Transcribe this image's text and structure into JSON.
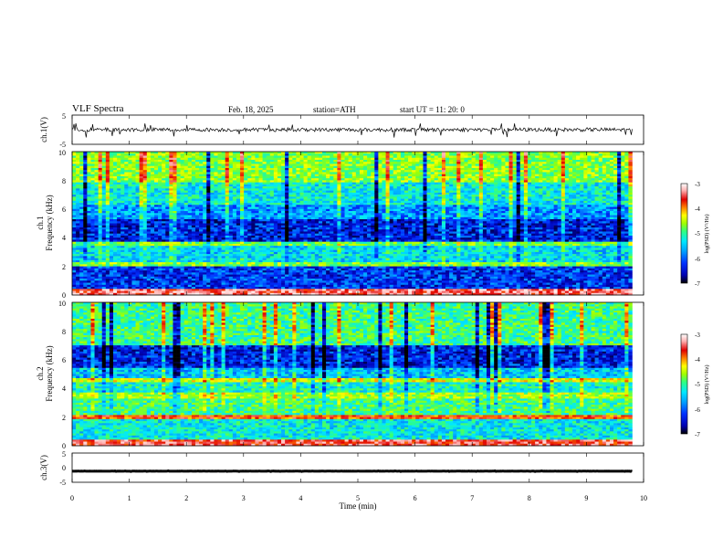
{
  "header": {
    "title": "VLF  Spectra",
    "date": "Feb. 18, 2025",
    "station": "station=ATH",
    "start_ut": "start  UT  =   11: 20: 0"
  },
  "colors": {
    "background": "#ffffff",
    "axis": "#000000",
    "colormap": [
      "#000000",
      "#0000b0",
      "#0030ff",
      "#00a0ff",
      "#00e8ff",
      "#30ff80",
      "#a0ff00",
      "#ffff00",
      "#ff8000",
      "#e00000",
      "#ffb0b0",
      "#ffffff"
    ]
  },
  "chart_data": [
    {
      "type": "line",
      "panel": "ch1-waveform",
      "ylabel": "ch.1(V)",
      "ylim": [
        -5,
        5
      ],
      "yticks": [
        "5",
        "-5"
      ],
      "xlim": [
        0,
        10
      ],
      "series": [
        {
          "values_summary": "noisy waveform around 0 V with spikes",
          "baseline": 0
        }
      ]
    },
    {
      "type": "heatmap",
      "panel": "ch1-spectrogram",
      "ylabel": "Frequency  (kHz)",
      "channel_label": "ch.1",
      "ylim": [
        0,
        10
      ],
      "yticks": [
        "0",
        "2",
        "4",
        "6",
        "8",
        "10"
      ],
      "xlim": [
        0,
        9.8
      ],
      "colorbar": {
        "label": "log(PSD) (V²/Hz)",
        "range": [
          -7,
          -3
        ],
        "ticks": [
          "-3",
          "-4",
          "-5",
          "-6",
          "-7"
        ]
      },
      "bands": [
        {
          "from": 0,
          "to": 0.5,
          "value": -3.5
        },
        {
          "from": 0.5,
          "to": 2.0,
          "value": -6.3
        },
        {
          "from": 2.0,
          "to": 2.3,
          "value": -4.9
        },
        {
          "from": 2.3,
          "to": 3.4,
          "value": -5.6
        },
        {
          "from": 3.4,
          "to": 3.7,
          "value": -5.0
        },
        {
          "from": 3.7,
          "to": 5.3,
          "value": -6.4
        },
        {
          "from": 5.3,
          "to": 6.3,
          "value": -5.9
        },
        {
          "from": 6.3,
          "to": 7.8,
          "value": -5.5
        },
        {
          "from": 7.8,
          "to": 10,
          "value": -4.9
        }
      ]
    },
    {
      "type": "heatmap",
      "panel": "ch2-spectrogram",
      "ylabel": "Frequency  (kHz)",
      "channel_label": "ch.2",
      "ylim": [
        0,
        10
      ],
      "yticks": [
        "0",
        "2",
        "4",
        "6",
        "8",
        "10"
      ],
      "xlim": [
        0,
        9.8
      ],
      "colorbar": {
        "label": "log(PSD) (V²/Hz)",
        "range": [
          -7,
          -3
        ],
        "ticks": [
          "-3",
          "-4",
          "-5",
          "-6",
          "-7"
        ]
      },
      "bands": [
        {
          "from": 0,
          "to": 0.4,
          "value": -3.6
        },
        {
          "from": 0.4,
          "to": 1.9,
          "value": -5.5
        },
        {
          "from": 1.9,
          "to": 2.2,
          "value": -3.9
        },
        {
          "from": 2.2,
          "to": 3.3,
          "value": -5.2
        },
        {
          "from": 3.3,
          "to": 3.7,
          "value": -4.8
        },
        {
          "from": 3.7,
          "to": 4.5,
          "value": -5.4
        },
        {
          "from": 4.5,
          "to": 4.7,
          "value": -4.6
        },
        {
          "from": 4.7,
          "to": 5.5,
          "value": -5.7
        },
        {
          "from": 5.5,
          "to": 7.0,
          "value": -6.4
        },
        {
          "from": 7.0,
          "to": 10,
          "value": -5.2
        }
      ]
    },
    {
      "type": "line",
      "panel": "ch3-waveform",
      "ylabel": "ch.3(V)",
      "ylim": [
        -5,
        5
      ],
      "yticks": [
        "5",
        "0",
        "-5"
      ],
      "xlim": [
        0,
        10
      ],
      "xlabel": "Time  (min)",
      "xticks": [
        "0",
        "1",
        "2",
        "3",
        "4",
        "5",
        "6",
        "7",
        "8",
        "9",
        "10"
      ],
      "series": [
        {
          "values_summary": "flat trace near -1.2 V",
          "baseline": -1.2
        }
      ]
    }
  ]
}
